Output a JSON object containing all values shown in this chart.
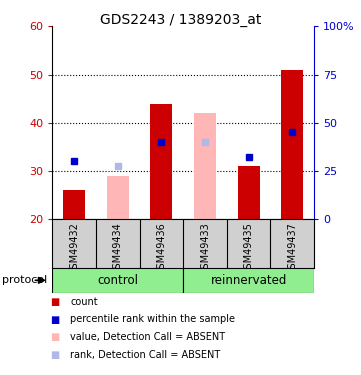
{
  "title": "GDS2243 / 1389203_at",
  "samples": [
    "GSM49432",
    "GSM49434",
    "GSM49436",
    "GSM49433",
    "GSM49435",
    "GSM49437"
  ],
  "ylim_left": [
    20,
    60
  ],
  "ylim_right": [
    0,
    100
  ],
  "yticks_left": [
    20,
    30,
    40,
    50,
    60
  ],
  "yticks_right": [
    0,
    25,
    50,
    75,
    100
  ],
  "bar_values": [
    26,
    null,
    44,
    null,
    31,
    51
  ],
  "pink_bar_values": [
    null,
    29,
    null,
    42,
    null,
    null
  ],
  "blue_dot_values": [
    32,
    null,
    36,
    null,
    33,
    38
  ],
  "light_blue_dot_values": [
    null,
    31,
    null,
    36,
    null,
    null
  ],
  "bar_width": 0.5,
  "group_color": "#90ee90",
  "axis_color_left": "#cc0000",
  "axis_color_right": "#0000cc",
  "title_fontsize": 10,
  "tick_fontsize": 8,
  "legend_items": [
    {
      "label": "count",
      "color": "#cc0000"
    },
    {
      "label": "percentile rank within the sample",
      "color": "#0000cc"
    },
    {
      "label": "value, Detection Call = ABSENT",
      "color": "#ffb6b6"
    },
    {
      "label": "rank, Detection Call = ABSENT",
      "color": "#b0b8e8"
    }
  ],
  "xlim": [
    -0.5,
    5.5
  ],
  "hgrid_values": [
    30,
    40,
    50
  ],
  "red_bar_color": "#cc0000",
  "pink_bar_color": "#ffb6b6",
  "blue_dot_color": "#0000cc",
  "light_blue_dot_color": "#b0b8e8",
  "gray_bg_color": "#d0d0d0"
}
